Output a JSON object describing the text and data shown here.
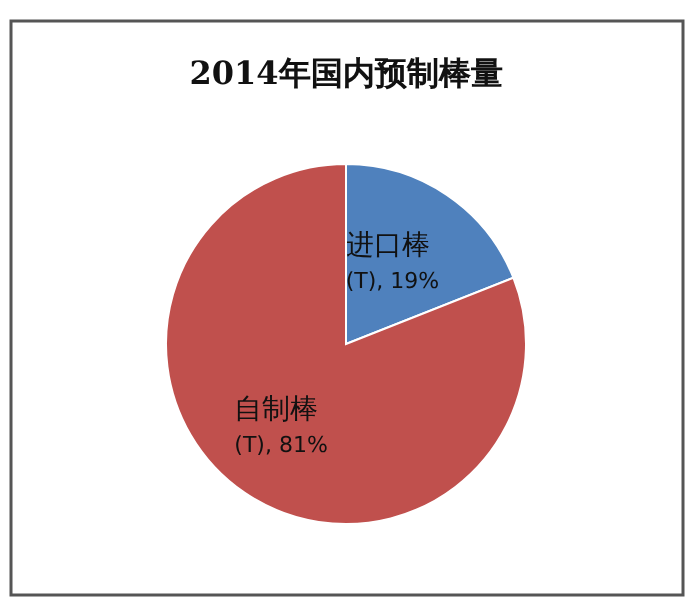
{
  "chart_data": {
    "type": "pie",
    "title": "2014年国内预制棒量",
    "categories": [
      "进口棒(T)",
      "自制棒(T)"
    ],
    "values": [
      19,
      81
    ],
    "value_labels": [
      "19%",
      "81%"
    ],
    "colors": [
      "#4f81bd",
      "#c0504d"
    ]
  }
}
